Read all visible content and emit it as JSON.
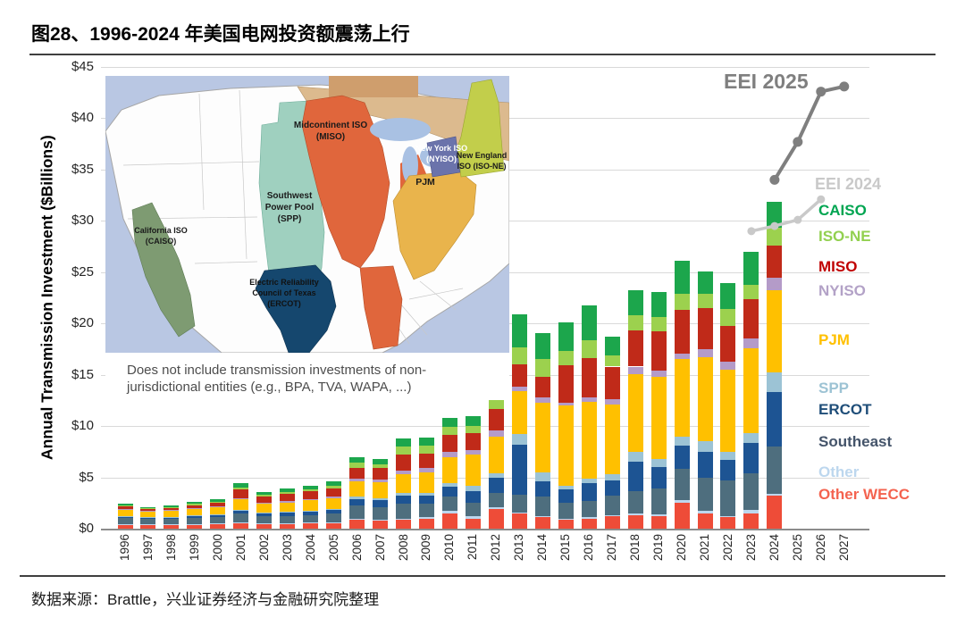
{
  "header": {
    "title": "图28、1996-2024 年美国电网投资额震荡上行"
  },
  "footer": {
    "source": "数据来源：Brattle，兴业证券经济与金融研究院整理"
  },
  "chart_data": {
    "type": "bar",
    "stacked": true,
    "title": "图28、1996-2024 年美国电网投资额震荡上行",
    "xlabel": "",
    "ylabel": "Annual Transmission Investment ($Billions)",
    "ylim": [
      0,
      45
    ],
    "ytick_step": 5,
    "ytick_prefix": "$",
    "grid": true,
    "legend_position": "right",
    "categories": [
      1996,
      1997,
      1998,
      1999,
      2000,
      2001,
      2002,
      2003,
      2004,
      2005,
      2006,
      2007,
      2008,
      2009,
      2010,
      2011,
      2012,
      2013,
      2014,
      2015,
      2016,
      2017,
      2018,
      2019,
      2020,
      2021,
      2022,
      2023,
      2024,
      2025,
      2026,
      2027
    ],
    "bar_years": [
      1996,
      1997,
      1998,
      1999,
      2000,
      2001,
      2002,
      2003,
      2004,
      2005,
      2006,
      2007,
      2008,
      2009,
      2010,
      2011,
      2012,
      2013,
      2014,
      2015,
      2016,
      2017,
      2018,
      2019,
      2020,
      2021,
      2022,
      2023,
      2024
    ],
    "series": [
      {
        "name": "Other WECC",
        "color": "#ee4c38",
        "values": [
          0.4,
          0.35,
          0.35,
          0.4,
          0.45,
          0.6,
          0.5,
          0.5,
          0.55,
          0.6,
          0.9,
          0.8,
          0.9,
          1.0,
          1.5,
          1.0,
          1.9,
          1.5,
          1.1,
          0.9,
          1.0,
          1.2,
          1.3,
          1.2,
          2.5,
          1.5,
          1.1,
          1.5,
          3.2
        ]
      },
      {
        "name": "Other",
        "color": "#bdd7ee",
        "values": [
          0.05,
          0.05,
          0.05,
          0.05,
          0.05,
          0.05,
          0.05,
          0.05,
          0.05,
          0.05,
          0.1,
          0.1,
          0.1,
          0.1,
          0.2,
          0.2,
          0.2,
          0.1,
          0.1,
          0.1,
          0.1,
          0.1,
          0.2,
          0.2,
          0.3,
          0.2,
          0.1,
          0.3,
          0.2
        ]
      },
      {
        "name": "Southeast",
        "color": "#4e6e7e",
        "values": [
          0.6,
          0.55,
          0.55,
          0.6,
          0.65,
          0.8,
          0.7,
          0.7,
          0.75,
          0.8,
          1.3,
          1.2,
          1.4,
          1.3,
          1.4,
          1.3,
          1.4,
          1.7,
          1.9,
          1.5,
          1.6,
          1.9,
          2.2,
          2.5,
          3.0,
          3.3,
          3.5,
          3.6,
          4.6
        ]
      },
      {
        "name": "ERCOT",
        "color": "#1d5493",
        "values": [
          0.15,
          0.15,
          0.15,
          0.2,
          0.2,
          0.3,
          0.25,
          0.3,
          0.3,
          0.35,
          0.6,
          0.7,
          0.8,
          0.8,
          1.0,
          1.2,
          1.5,
          4.9,
          1.5,
          1.3,
          1.7,
          1.5,
          2.8,
          2.1,
          2.3,
          2.5,
          2.0,
          3.0,
          5.3
        ]
      },
      {
        "name": "SPP",
        "color": "#9cc3d5",
        "values": [
          0.05,
          0.05,
          0.05,
          0.05,
          0.05,
          0.1,
          0.1,
          0.1,
          0.1,
          0.1,
          0.2,
          0.2,
          0.3,
          0.3,
          0.3,
          0.5,
          0.4,
          1.0,
          0.9,
          0.4,
          0.5,
          0.6,
          1.0,
          0.8,
          0.9,
          1.0,
          0.8,
          0.9,
          1.9
        ]
      },
      {
        "name": "PJM",
        "color": "#ffc000",
        "values": [
          0.6,
          0.5,
          0.55,
          0.6,
          0.7,
          1.0,
          0.8,
          0.9,
          1.0,
          1.1,
          1.5,
          1.5,
          1.8,
          2.0,
          2.6,
          3.0,
          3.6,
          4.2,
          6.8,
          7.8,
          7.5,
          6.8,
          7.6,
          8.0,
          7.5,
          8.2,
          8.0,
          8.3,
          8.0
        ]
      },
      {
        "name": "NYISO",
        "color": "#b49bc8",
        "values": [
          0.1,
          0.1,
          0.1,
          0.1,
          0.1,
          0.15,
          0.15,
          0.15,
          0.15,
          0.15,
          0.3,
          0.3,
          0.4,
          0.4,
          0.5,
          0.5,
          0.6,
          0.4,
          0.5,
          0.3,
          0.4,
          0.5,
          0.7,
          0.6,
          0.6,
          0.8,
          0.8,
          0.9,
          1.3
        ]
      },
      {
        "name": "MISO",
        "color": "#c02a19",
        "values": [
          0.25,
          0.2,
          0.25,
          0.3,
          0.35,
          0.8,
          0.6,
          0.7,
          0.75,
          0.8,
          1.0,
          1.1,
          1.5,
          1.4,
          1.6,
          1.6,
          2.1,
          2.2,
          2.0,
          3.6,
          3.8,
          3.2,
          3.5,
          3.8,
          4.2,
          4.0,
          3.5,
          3.9,
          3.1
        ]
      },
      {
        "name": "ISO-NE",
        "color": "#9cd14e",
        "values": [
          0.05,
          0.05,
          0.05,
          0.1,
          0.1,
          0.2,
          0.15,
          0.2,
          0.2,
          0.25,
          0.5,
          0.4,
          0.8,
          0.8,
          0.8,
          0.7,
          1.2,
          1.7,
          1.7,
          1.4,
          1.8,
          1.1,
          1.5,
          1.4,
          1.6,
          1.4,
          1.6,
          1.4,
          1.7
        ]
      },
      {
        "name": "CAISO",
        "color": "#1ca64c",
        "values": [
          0.15,
          0.1,
          0.2,
          0.2,
          0.25,
          0.4,
          0.3,
          0.3,
          0.35,
          0.4,
          0.6,
          0.5,
          0.8,
          0.8,
          0.9,
          1.0,
          1.4,
          3.2,
          2.6,
          2.8,
          3.4,
          1.8,
          2.4,
          2.5,
          3.2,
          2.2,
          2.5,
          3.2,
          2.6
        ]
      }
    ],
    "lines": [
      {
        "name": "EEI 2025",
        "color": "#7f7f7f",
        "years": [
          2024,
          2025,
          2026,
          2027
        ],
        "values": [
          34.0,
          37.7,
          42.6,
          43.1
        ]
      },
      {
        "name": "EEI 2024",
        "color": "#c9c9c9",
        "years": [
          2023,
          2024,
          2025,
          2026
        ],
        "values": [
          29.0,
          29.5,
          30.1,
          32.1
        ]
      }
    ]
  },
  "legend": {
    "items": [
      {
        "id": "eei2025",
        "label": "EEI 2025",
        "color": "#7f7f7f"
      },
      {
        "id": "eei2024",
        "label": "EEI 2024",
        "color": "#c9c9c9"
      },
      {
        "id": "caiso",
        "label": "CAISO",
        "color": "#00a551"
      },
      {
        "id": "isone",
        "label": "ISO-NE",
        "color": "#92d050"
      },
      {
        "id": "miso",
        "label": "MISO",
        "color": "#c00000"
      },
      {
        "id": "nyiso",
        "label": "NYISO",
        "color": "#b3a2c7"
      },
      {
        "id": "pjm",
        "label": "PJM",
        "color": "#ffc000"
      },
      {
        "id": "spp",
        "label": "SPP",
        "color": "#9dc3d4"
      },
      {
        "id": "ercot",
        "label": "ERCOT",
        "color": "#1f4e79"
      },
      {
        "id": "southeast",
        "label": "Southeast",
        "color": "#44546a"
      },
      {
        "id": "other",
        "label": "Other",
        "color": "#bdd7ee"
      },
      {
        "id": "otherwecc",
        "label": "Other WECC",
        "color": "#f4634f"
      }
    ]
  },
  "map_inset": {
    "labels": [
      {
        "id": "miso",
        "text": "Midcontinent ISO\n(MISO)"
      },
      {
        "id": "nyiso",
        "text": "New York ISO\n(NYISO)"
      },
      {
        "id": "isone",
        "text": "New England\nISO (ISO-NE)"
      },
      {
        "id": "pjm",
        "text": "PJM"
      },
      {
        "id": "spp",
        "text": "Southwest\nPower Pool\n(SPP)"
      },
      {
        "id": "caiso",
        "text": "California ISO\n(CAISO)"
      },
      {
        "id": "ercot",
        "text": "Electric Reliability\nCouncil of Texas\n(ERCOT)"
      }
    ],
    "footnote": "Does not include transmission investments of non-jurisdictional entities (e.g., BPA, TVA, WAPA, ...)"
  }
}
